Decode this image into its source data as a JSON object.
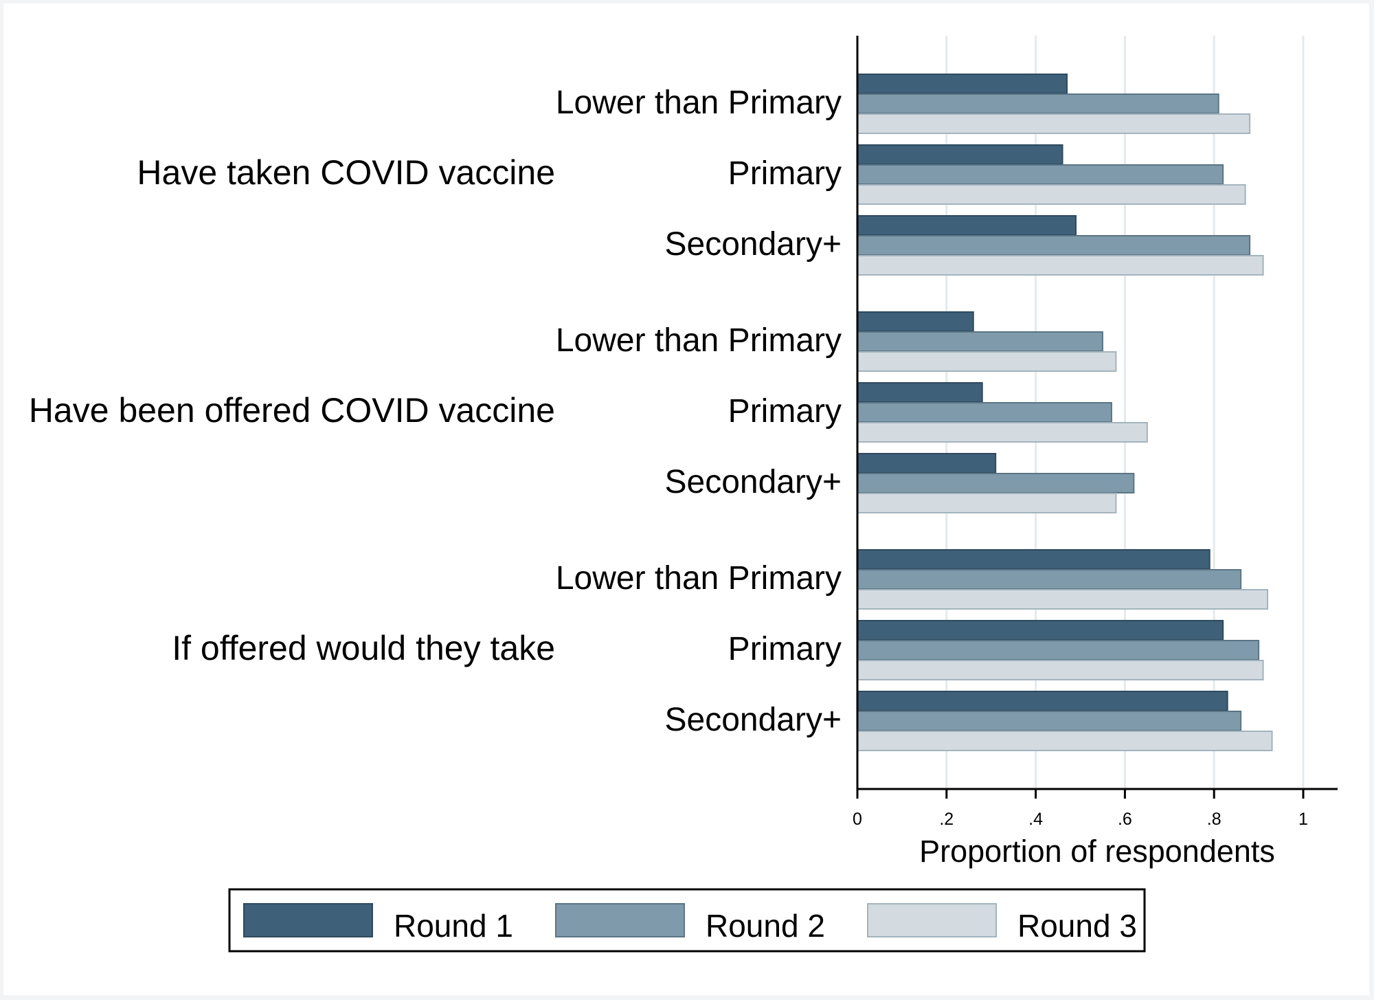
{
  "chart_data": {
    "type": "bar",
    "orientation": "horizontal",
    "groups": [
      {
        "label": "Have taken COVID vaccine",
        "categories": [
          {
            "label": "Lower than Primary",
            "values": [
              0.47,
              0.81,
              0.88
            ]
          },
          {
            "label": "Primary",
            "values": [
              0.46,
              0.82,
              0.87
            ]
          },
          {
            "label": "Secondary+",
            "values": [
              0.49,
              0.88,
              0.91
            ]
          }
        ]
      },
      {
        "label": "Have been offered COVID vaccine",
        "categories": [
          {
            "label": "Lower than Primary",
            "values": [
              0.26,
              0.55,
              0.58
            ]
          },
          {
            "label": "Primary",
            "values": [
              0.28,
              0.57,
              0.65
            ]
          },
          {
            "label": "Secondary+",
            "values": [
              0.31,
              0.62,
              0.58
            ]
          }
        ]
      },
      {
        "label": "If offered would they take",
        "categories": [
          {
            "label": "Lower than Primary",
            "values": [
              0.79,
              0.86,
              0.92
            ]
          },
          {
            "label": "Primary",
            "values": [
              0.82,
              0.9,
              0.91
            ]
          },
          {
            "label": "Secondary+",
            "values": [
              0.83,
              0.86,
              0.93
            ]
          }
        ]
      }
    ],
    "series": [
      {
        "name": "Round 1",
        "color": "#3f6079",
        "stroke": "#2e4a5e"
      },
      {
        "name": "Round 2",
        "color": "#7f9aaa",
        "stroke": "#5a7585"
      },
      {
        "name": "Round 3",
        "color": "#d3dbe1",
        "stroke": "#a3b3bd"
      }
    ],
    "xlabel": "Proportion of respondents",
    "xlim": [
      0,
      1.08
    ],
    "xticks": [
      0,
      0.2,
      0.4,
      0.6,
      0.8,
      1
    ],
    "xtick_labels": [
      "0",
      ".2",
      ".4",
      ".6",
      ".8",
      "1"
    ],
    "grid": true,
    "legend_position": "bottom"
  }
}
